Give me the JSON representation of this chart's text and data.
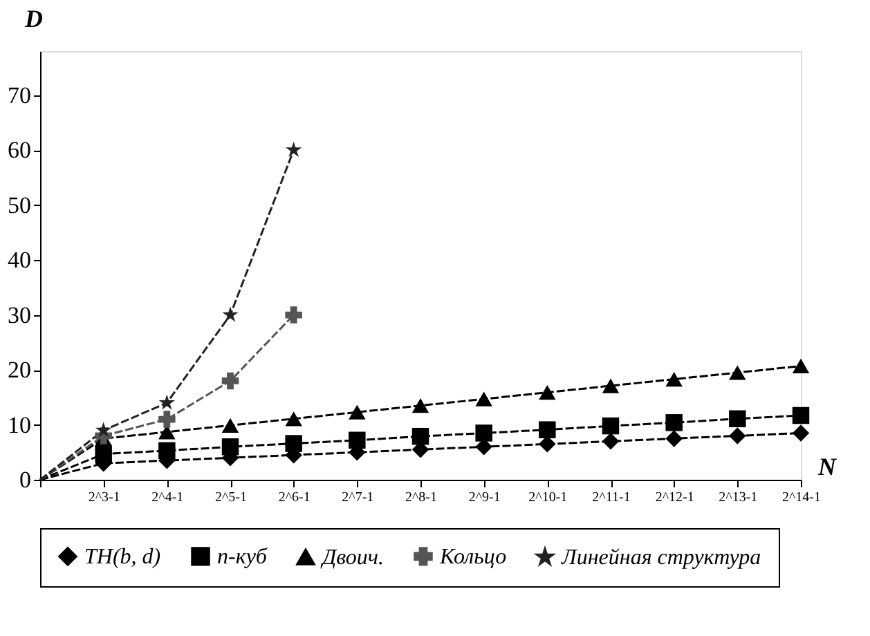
{
  "chart_data": {
    "type": "line",
    "xlabel": "N",
    "ylabel": "D",
    "categories": [
      null,
      "2^3-1",
      "2^4-1",
      "2^5-1",
      "2^6-1",
      "2^7-1",
      "2^8-1",
      "2^9-1",
      "2^10-1",
      "2^11-1",
      "2^12-1",
      "2^13-1",
      "2^14-1"
    ],
    "series": [
      {
        "name": "TH(b, d)",
        "color": "#000000",
        "marker": "diamond",
        "line_style": "dashed",
        "values": [
          0,
          3,
          3.5,
          4,
          4.5,
          5,
          5.5,
          6,
          6.5,
          7,
          7.5,
          8,
          8.5
        ]
      },
      {
        "name": "n-куб",
        "color": "#000000",
        "marker": "square",
        "line_style": "dashed",
        "values": [
          0,
          4.7,
          5.3,
          6,
          6.6,
          7.2,
          7.9,
          8.5,
          9.1,
          9.8,
          10.4,
          11.1,
          11.7
        ]
      },
      {
        "name": "Двоич.",
        "color": "#000000",
        "marker": "triangle",
        "line_style": "dashed",
        "values": [
          0,
          7.5,
          8.7,
          9.9,
          11.1,
          12.3,
          13.5,
          14.7,
          15.9,
          17.1,
          18.3,
          19.5,
          20.7
        ]
      },
      {
        "name": "Кольцо",
        "color": "#555555",
        "marker": "cross",
        "line_style": "dashed",
        "values": [
          0,
          8,
          11,
          18,
          30,
          null,
          null,
          null,
          null,
          null,
          null,
          null,
          null
        ]
      },
      {
        "name": "Линейная структура",
        "color": "#222222",
        "marker": "star",
        "line_style": "dashed",
        "values": [
          0,
          9,
          14,
          30,
          60,
          null,
          null,
          null,
          null,
          null,
          null,
          null,
          null
        ]
      }
    ],
    "ylim": [
      0,
      78
    ],
    "yticks": [
      0,
      10,
      20,
      30,
      40,
      50,
      60,
      70
    ],
    "grid": false,
    "legend": "bottom"
  }
}
